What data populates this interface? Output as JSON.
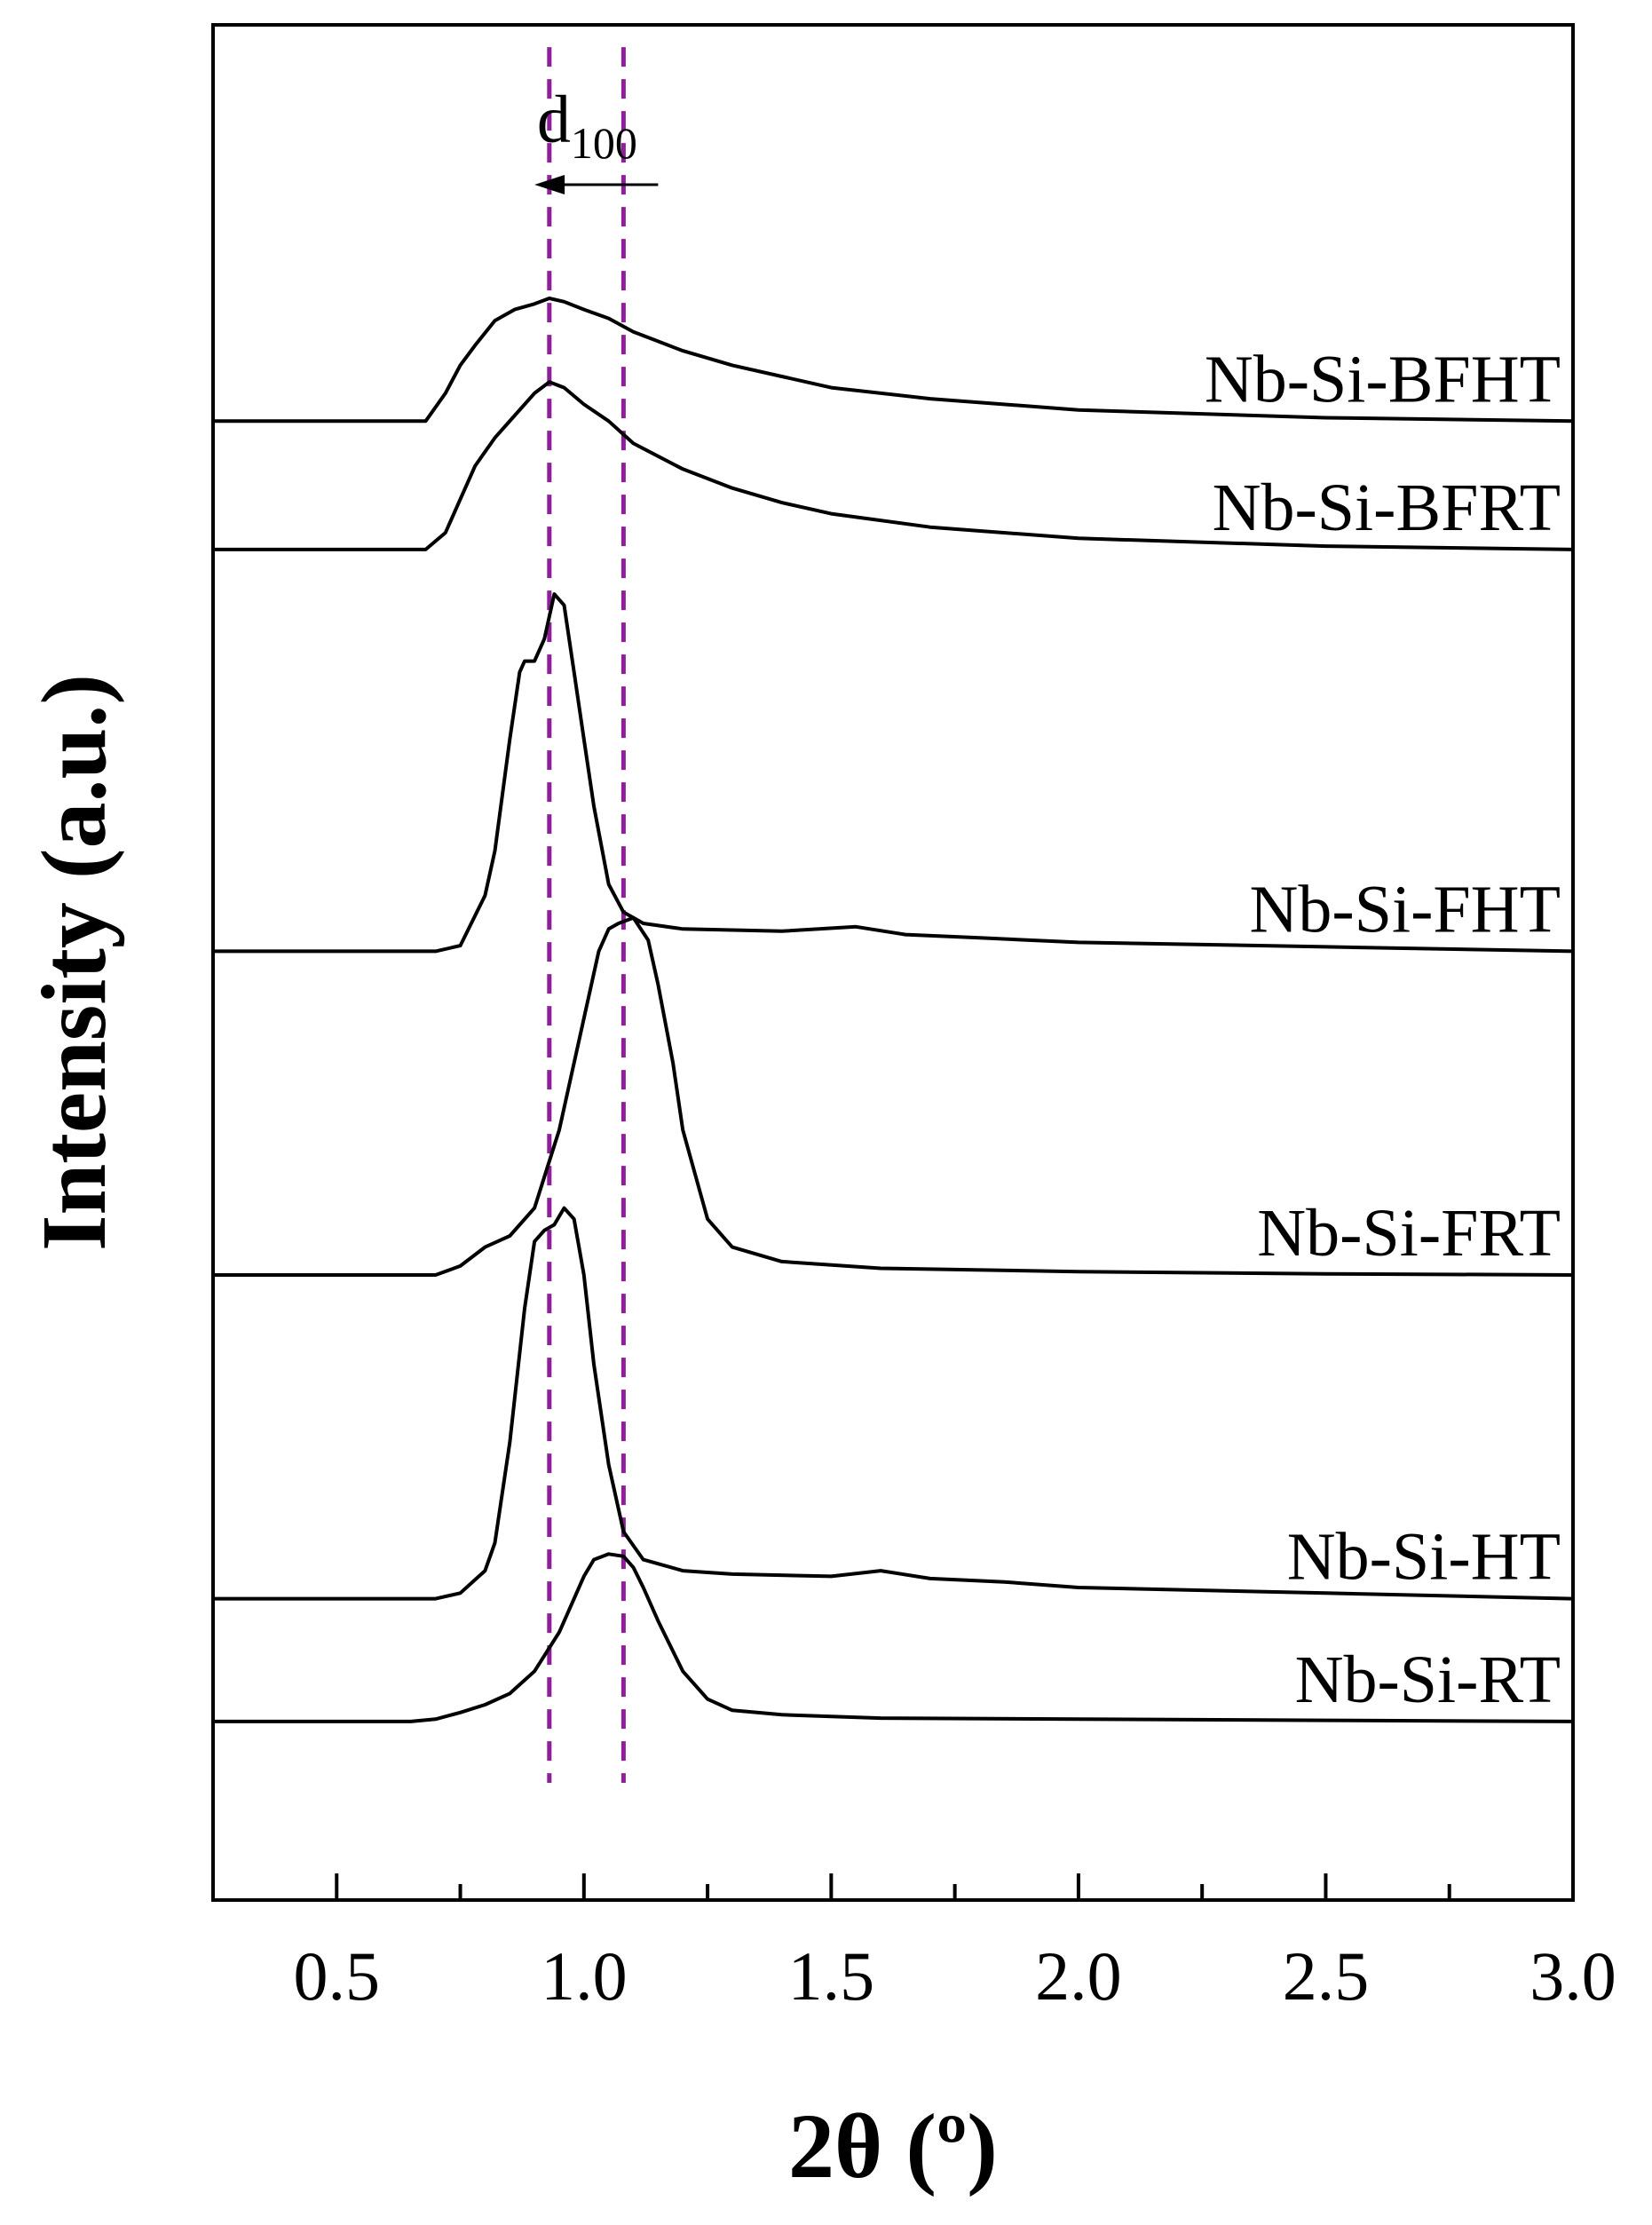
{
  "chart_data": {
    "type": "line",
    "title": "",
    "xlabel": "2θ (º)",
    "ylabel": "Intensity (a.u.)",
    "xlim": [
      0.25,
      3.0
    ],
    "ylim": [
      -1.6,
      15.2
    ],
    "xticks": [
      0.5,
      1.0,
      1.5,
      2.0,
      2.5,
      3.0
    ],
    "xtick_labels": [
      "0.5",
      "1.0",
      "1.5",
      "2.0",
      "2.5",
      "3.0"
    ],
    "grid": false,
    "legend": "none",
    "series": [
      {
        "name": "Nb-Si-RT",
        "label": "Nb-Si-RT",
        "baseline": 0.0,
        "x": [
          0.25,
          0.65,
          0.7,
          0.75,
          0.8,
          0.85,
          0.9,
          0.95,
          0.98,
          1.0,
          1.02,
          1.05,
          1.08,
          1.1,
          1.12,
          1.15,
          1.2,
          1.25,
          1.3,
          1.4,
          1.6,
          2.0,
          2.5,
          3.0
        ],
        "y": [
          0,
          0,
          0.02,
          0.08,
          0.15,
          0.25,
          0.45,
          0.8,
          1.1,
          1.3,
          1.45,
          1.5,
          1.48,
          1.38,
          1.2,
          0.9,
          0.45,
          0.2,
          0.1,
          0.06,
          0.03,
          0.02,
          0.01,
          0
        ]
      },
      {
        "name": "Nb-Si-HT",
        "label": "Nb-Si-HT",
        "baseline": 1.1,
        "x": [
          0.25,
          0.7,
          0.75,
          0.8,
          0.82,
          0.85,
          0.88,
          0.9,
          0.92,
          0.94,
          0.96,
          0.98,
          1.0,
          1.02,
          1.05,
          1.08,
          1.12,
          1.2,
          1.3,
          1.5,
          1.6,
          1.7,
          1.85,
          2.0,
          2.5,
          3.0
        ],
        "y": [
          0,
          0,
          0.05,
          0.25,
          0.5,
          1.4,
          2.6,
          3.2,
          3.3,
          3.35,
          3.5,
          3.4,
          2.9,
          2.1,
          1.2,
          0.6,
          0.35,
          0.25,
          0.22,
          0.2,
          0.25,
          0.18,
          0.15,
          0.1,
          0.05,
          0
        ]
      },
      {
        "name": "Nb-Si-FRT",
        "label": "Nb-Si-FRT",
        "baseline": 4.0,
        "x": [
          0.25,
          0.7,
          0.75,
          0.8,
          0.85,
          0.9,
          0.95,
          1.0,
          1.03,
          1.05,
          1.07,
          1.1,
          1.13,
          1.15,
          1.18,
          1.2,
          1.25,
          1.3,
          1.4,
          1.6,
          2.0,
          2.5,
          3.0
        ],
        "y": [
          0,
          0,
          0.08,
          0.25,
          0.35,
          0.6,
          1.3,
          2.3,
          2.9,
          3.1,
          3.15,
          3.2,
          3.0,
          2.6,
          1.9,
          1.3,
          0.5,
          0.25,
          0.12,
          0.06,
          0.03,
          0.01,
          0
        ]
      },
      {
        "name": "Nb-Si-FHT",
        "label": "Nb-Si-FHT",
        "baseline": 6.9,
        "x": [
          0.25,
          0.7,
          0.75,
          0.8,
          0.82,
          0.85,
          0.87,
          0.88,
          0.9,
          0.92,
          0.94,
          0.96,
          0.98,
          1.0,
          1.02,
          1.05,
          1.08,
          1.12,
          1.2,
          1.4,
          1.55,
          1.65,
          1.8,
          2.0,
          2.5,
          3.0
        ],
        "y": [
          0,
          0,
          0.05,
          0.5,
          0.9,
          1.9,
          2.5,
          2.6,
          2.6,
          2.8,
          3.2,
          3.1,
          2.5,
          1.9,
          1.3,
          0.6,
          0.35,
          0.25,
          0.2,
          0.18,
          0.22,
          0.15,
          0.12,
          0.08,
          0.04,
          0
        ]
      },
      {
        "name": "Nb-Si-BFRT",
        "label": "Nb-Si-BFRT",
        "baseline": 10.5,
        "x": [
          0.25,
          0.68,
          0.72,
          0.75,
          0.78,
          0.82,
          0.86,
          0.9,
          0.93,
          0.96,
          1.0,
          1.05,
          1.1,
          1.2,
          1.3,
          1.4,
          1.5,
          1.7,
          2.0,
          2.5,
          3.0
        ],
        "y": [
          0,
          0,
          0.15,
          0.45,
          0.75,
          1.0,
          1.2,
          1.4,
          1.5,
          1.45,
          1.3,
          1.15,
          0.95,
          0.72,
          0.55,
          0.42,
          0.32,
          0.2,
          0.1,
          0.03,
          0
        ]
      },
      {
        "name": "Nb-Si-BFHT",
        "label": "Nb-Si-BFHT",
        "baseline": 11.65,
        "x": [
          0.25,
          0.68,
          0.72,
          0.75,
          0.78,
          0.82,
          0.86,
          0.9,
          0.93,
          0.96,
          1.0,
          1.05,
          1.1,
          1.2,
          1.3,
          1.4,
          1.5,
          1.7,
          2.0,
          2.5,
          3.0
        ],
        "y": [
          0,
          0,
          0.25,
          0.5,
          0.68,
          0.9,
          1.0,
          1.05,
          1.1,
          1.07,
          1.0,
          0.92,
          0.8,
          0.63,
          0.5,
          0.4,
          0.3,
          0.2,
          0.1,
          0.03,
          0
        ]
      }
    ],
    "reference_lines": [
      {
        "x": 0.93,
        "color": "#8e1e9a",
        "style": "dashed"
      },
      {
        "x": 1.08,
        "color": "#8e1e9a",
        "style": "dashed"
      }
    ],
    "annotation": {
      "text": "d",
      "subscript": "100",
      "arrow_from_x": 1.15,
      "arrow_to_x": 0.9,
      "direction": "left"
    }
  }
}
